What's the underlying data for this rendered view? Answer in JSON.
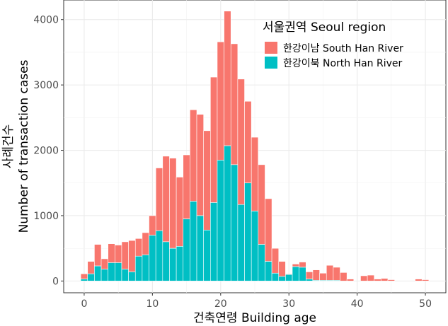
{
  "chart_data": {
    "type": "bar",
    "stacked": true,
    "xlabel": "건축연령 Building age",
    "ylabel_line1": "사례건수",
    "ylabel_line2": "Number of transaction cases",
    "xlim": [
      -3,
      53
    ],
    "ylim": [
      -180,
      4300
    ],
    "xticks": [
      0,
      10,
      20,
      30,
      40,
      50
    ],
    "yticks": [
      0,
      1000,
      2000,
      3000,
      4000
    ],
    "grid": true,
    "legend": {
      "title": "서울권역 Seoul region",
      "position": "top-right",
      "entries": [
        {
          "name": "한강이남 South Han River",
          "color": "#F8766D"
        },
        {
          "name": "한강이북 North Han River",
          "color": "#00BFC4"
        }
      ]
    },
    "x": [
      0,
      1,
      2,
      3,
      4,
      5,
      6,
      7,
      8,
      9,
      10,
      11,
      12,
      13,
      14,
      15,
      16,
      17,
      18,
      19,
      20,
      21,
      22,
      23,
      24,
      25,
      26,
      27,
      28,
      29,
      30,
      31,
      32,
      33,
      34,
      35,
      36,
      37,
      38,
      39,
      40,
      41,
      42,
      43,
      44,
      45,
      46,
      47,
      48,
      49,
      50,
      51
    ],
    "series": [
      {
        "name": "한강이북 North Han River",
        "color": "#00BFC4",
        "values": [
          30,
          110,
          230,
          180,
          280,
          280,
          180,
          140,
          380,
          400,
          700,
          770,
          600,
          500,
          530,
          950,
          1220,
          1000,
          780,
          1200,
          1850,
          2070,
          1780,
          1170,
          1500,
          1070,
          560,
          300,
          120,
          70,
          100,
          220,
          210,
          30,
          10,
          10,
          10,
          10,
          0,
          0,
          0,
          0,
          0,
          0,
          0,
          0,
          0,
          0,
          0,
          0,
          0,
          0
        ]
      },
      {
        "name": "한강이남 South Han River",
        "color": "#F8766D",
        "values": [
          80,
          190,
          330,
          160,
          290,
          270,
          420,
          480,
          270,
          340,
          300,
          960,
          1310,
          1380,
          1060,
          980,
          1400,
          1550,
          1520,
          1920,
          1810,
          2060,
          1850,
          1920,
          1250,
          1130,
          1220,
          960,
          380,
          230,
          10,
          40,
          80,
          110,
          160,
          110,
          230,
          200,
          130,
          30,
          0,
          80,
          90,
          30,
          40,
          20,
          0,
          0,
          0,
          30,
          20,
          0
        ]
      }
    ]
  }
}
